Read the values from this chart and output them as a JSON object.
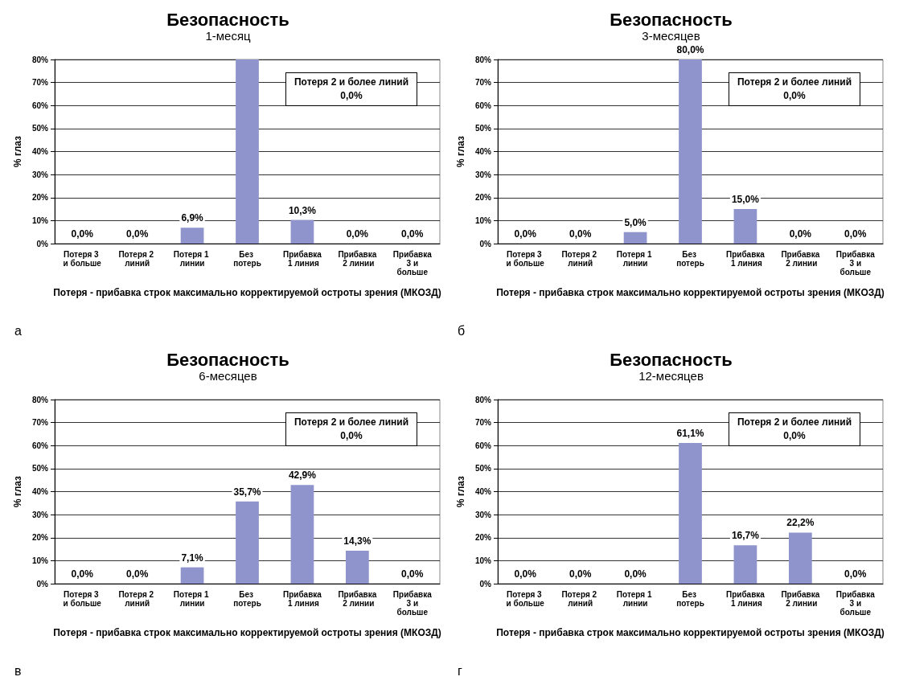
{
  "chart_data": [
    {
      "type": "bar",
      "title": "Безопасность",
      "subtitle": "1-месяц",
      "xlabel": "Потеря - прибавка строк максимально корректируемой остроты зрения (МКОЗД)",
      "ylabel": "% глаз",
      "annotations": [
        "Потеря 2 и более линий 0,0%",
        "а"
      ],
      "categories": [
        "Потеря 3 и больше",
        "Потеря 2 линий",
        "Потеря 1 линии",
        "Без потерь",
        "Прибавка 1 линия",
        "Прибавка 2 линии",
        "Прибавка 3 и больше"
      ],
      "values": [
        0,
        0,
        6.9,
        80,
        10.3,
        0,
        0
      ],
      "value_labels": [
        "0,0%",
        "0,0%",
        "6,9%",
        null,
        "10,3%",
        "0,0%",
        "0,0%"
      ],
      "color": "#8f94cc",
      "ylim": [
        0,
        80
      ],
      "yticks": [
        {
          "value": 0,
          "label": "0%"
        },
        {
          "value": 10,
          "label": "10%"
        },
        {
          "value": 20,
          "label": "20%"
        },
        {
          "value": 30,
          "label": "30%"
        },
        {
          "value": 40,
          "label": "40%"
        },
        {
          "value": 50,
          "label": "50%"
        },
        {
          "value": 60,
          "label": "60%"
        },
        {
          "value": 70,
          "label": "70%"
        },
        {
          "value": 80,
          "label": "80%"
        }
      ],
      "grid": "y"
    },
    {
      "type": "bar",
      "title": "Безопасность",
      "subtitle": "3-месяцев",
      "xlabel": "Потеря - прибавка строк максимально корректируемой остроты зрения (МКОЗД)",
      "ylabel": "% глаз",
      "annotations": [
        "Потеря 2 и более линий 0,0%",
        "б"
      ],
      "categories": [
        "Потеря 3 и больше",
        "Потеря 2 линий",
        "Потеря 1 линии",
        "Без потерь",
        "Прибавка 1 линия",
        "Прибавка 2 линии",
        "Прибавка 3 и больше"
      ],
      "values": [
        0,
        0,
        5,
        80,
        15,
        0,
        0
      ],
      "value_labels": [
        "0,0%",
        "0,0%",
        "5,0%",
        "80,0%",
        "15,0%",
        "0,0%",
        "0,0%"
      ],
      "color": "#8f94cc",
      "ylim": [
        0,
        80
      ],
      "yticks": [
        {
          "value": 0,
          "label": "0%"
        },
        {
          "value": 10,
          "label": "10%"
        },
        {
          "value": 20,
          "label": "20%"
        },
        {
          "value": 30,
          "label": "30%"
        },
        {
          "value": 40,
          "label": "40%"
        },
        {
          "value": 50,
          "label": "50%"
        },
        {
          "value": 60,
          "label": "60%"
        },
        {
          "value": 70,
          "label": "70%"
        },
        {
          "value": 80,
          "label": "80%"
        }
      ],
      "grid": "y"
    },
    {
      "type": "bar",
      "title": "Безопасность",
      "subtitle": "6-месяцев",
      "xlabel": "Потеря - прибавка строк максимально корректируемой остроты зрения (МКОЗД)",
      "ylabel": "% глаз",
      "annotations": [
        "Потеря 2 и более линий 0,0%",
        "в"
      ],
      "categories": [
        "Потеря 3 и больше",
        "Потеря 2 линий",
        "Потеря 1 линии",
        "Без потерь",
        "Прибавка 1 линия",
        "Прибавка 2 линии",
        "Прибавка 3 и больше"
      ],
      "values": [
        0,
        0,
        7.1,
        35.7,
        42.9,
        14.3,
        0
      ],
      "value_labels": [
        "0,0%",
        "0,0%",
        "7,1%",
        "35,7%",
        "42,9%",
        "14,3%",
        "0,0%"
      ],
      "color": "#8f94cc",
      "ylim": [
        0,
        80
      ],
      "yticks": [
        {
          "value": 0,
          "label": "0%"
        },
        {
          "value": 10,
          "label": "10%"
        },
        {
          "value": 20,
          "label": "20%"
        },
        {
          "value": 30,
          "label": "30%"
        },
        {
          "value": 40,
          "label": "40%"
        },
        {
          "value": 50,
          "label": "50%"
        },
        {
          "value": 60,
          "label": "60%"
        },
        {
          "value": 70,
          "label": "70%"
        },
        {
          "value": 80,
          "label": "80%"
        }
      ],
      "grid": "y"
    },
    {
      "type": "bar",
      "title": "Безопасность",
      "subtitle": "12-месяцев",
      "xlabel": "Потеря - прибавка строк максимально корректируемой остроты зрения (МКОЗД)",
      "ylabel": "% глаз",
      "annotations": [
        "Потеря 2 и более линий 0,0%",
        "г"
      ],
      "categories": [
        "Потеря 3 и больше",
        "Потеря 2 линий",
        "Потеря 1 линии",
        "Без потерь",
        "Прибавка 1 линия",
        "Прибавка 2 линии",
        "Прибавка 3 и больше"
      ],
      "values": [
        0,
        0,
        0,
        61.1,
        16.7,
        22.2,
        0
      ],
      "value_labels": [
        "0,0%",
        "0,0%",
        "0,0%",
        "61,1%",
        "16,7%",
        "22,2%",
        "0,0%"
      ],
      "color": "#8f94cc",
      "ylim": [
        0,
        80
      ],
      "yticks": [
        {
          "value": 0,
          "label": "0%"
        },
        {
          "value": 10,
          "label": "10%"
        },
        {
          "value": 20,
          "label": "20%"
        },
        {
          "value": 30,
          "label": "30%"
        },
        {
          "value": 40,
          "label": "40%"
        },
        {
          "value": 50,
          "label": "50%"
        },
        {
          "value": 60,
          "label": "60%"
        },
        {
          "value": 70,
          "label": "70%"
        },
        {
          "value": 80,
          "label": "80%"
        }
      ],
      "grid": "y"
    }
  ]
}
